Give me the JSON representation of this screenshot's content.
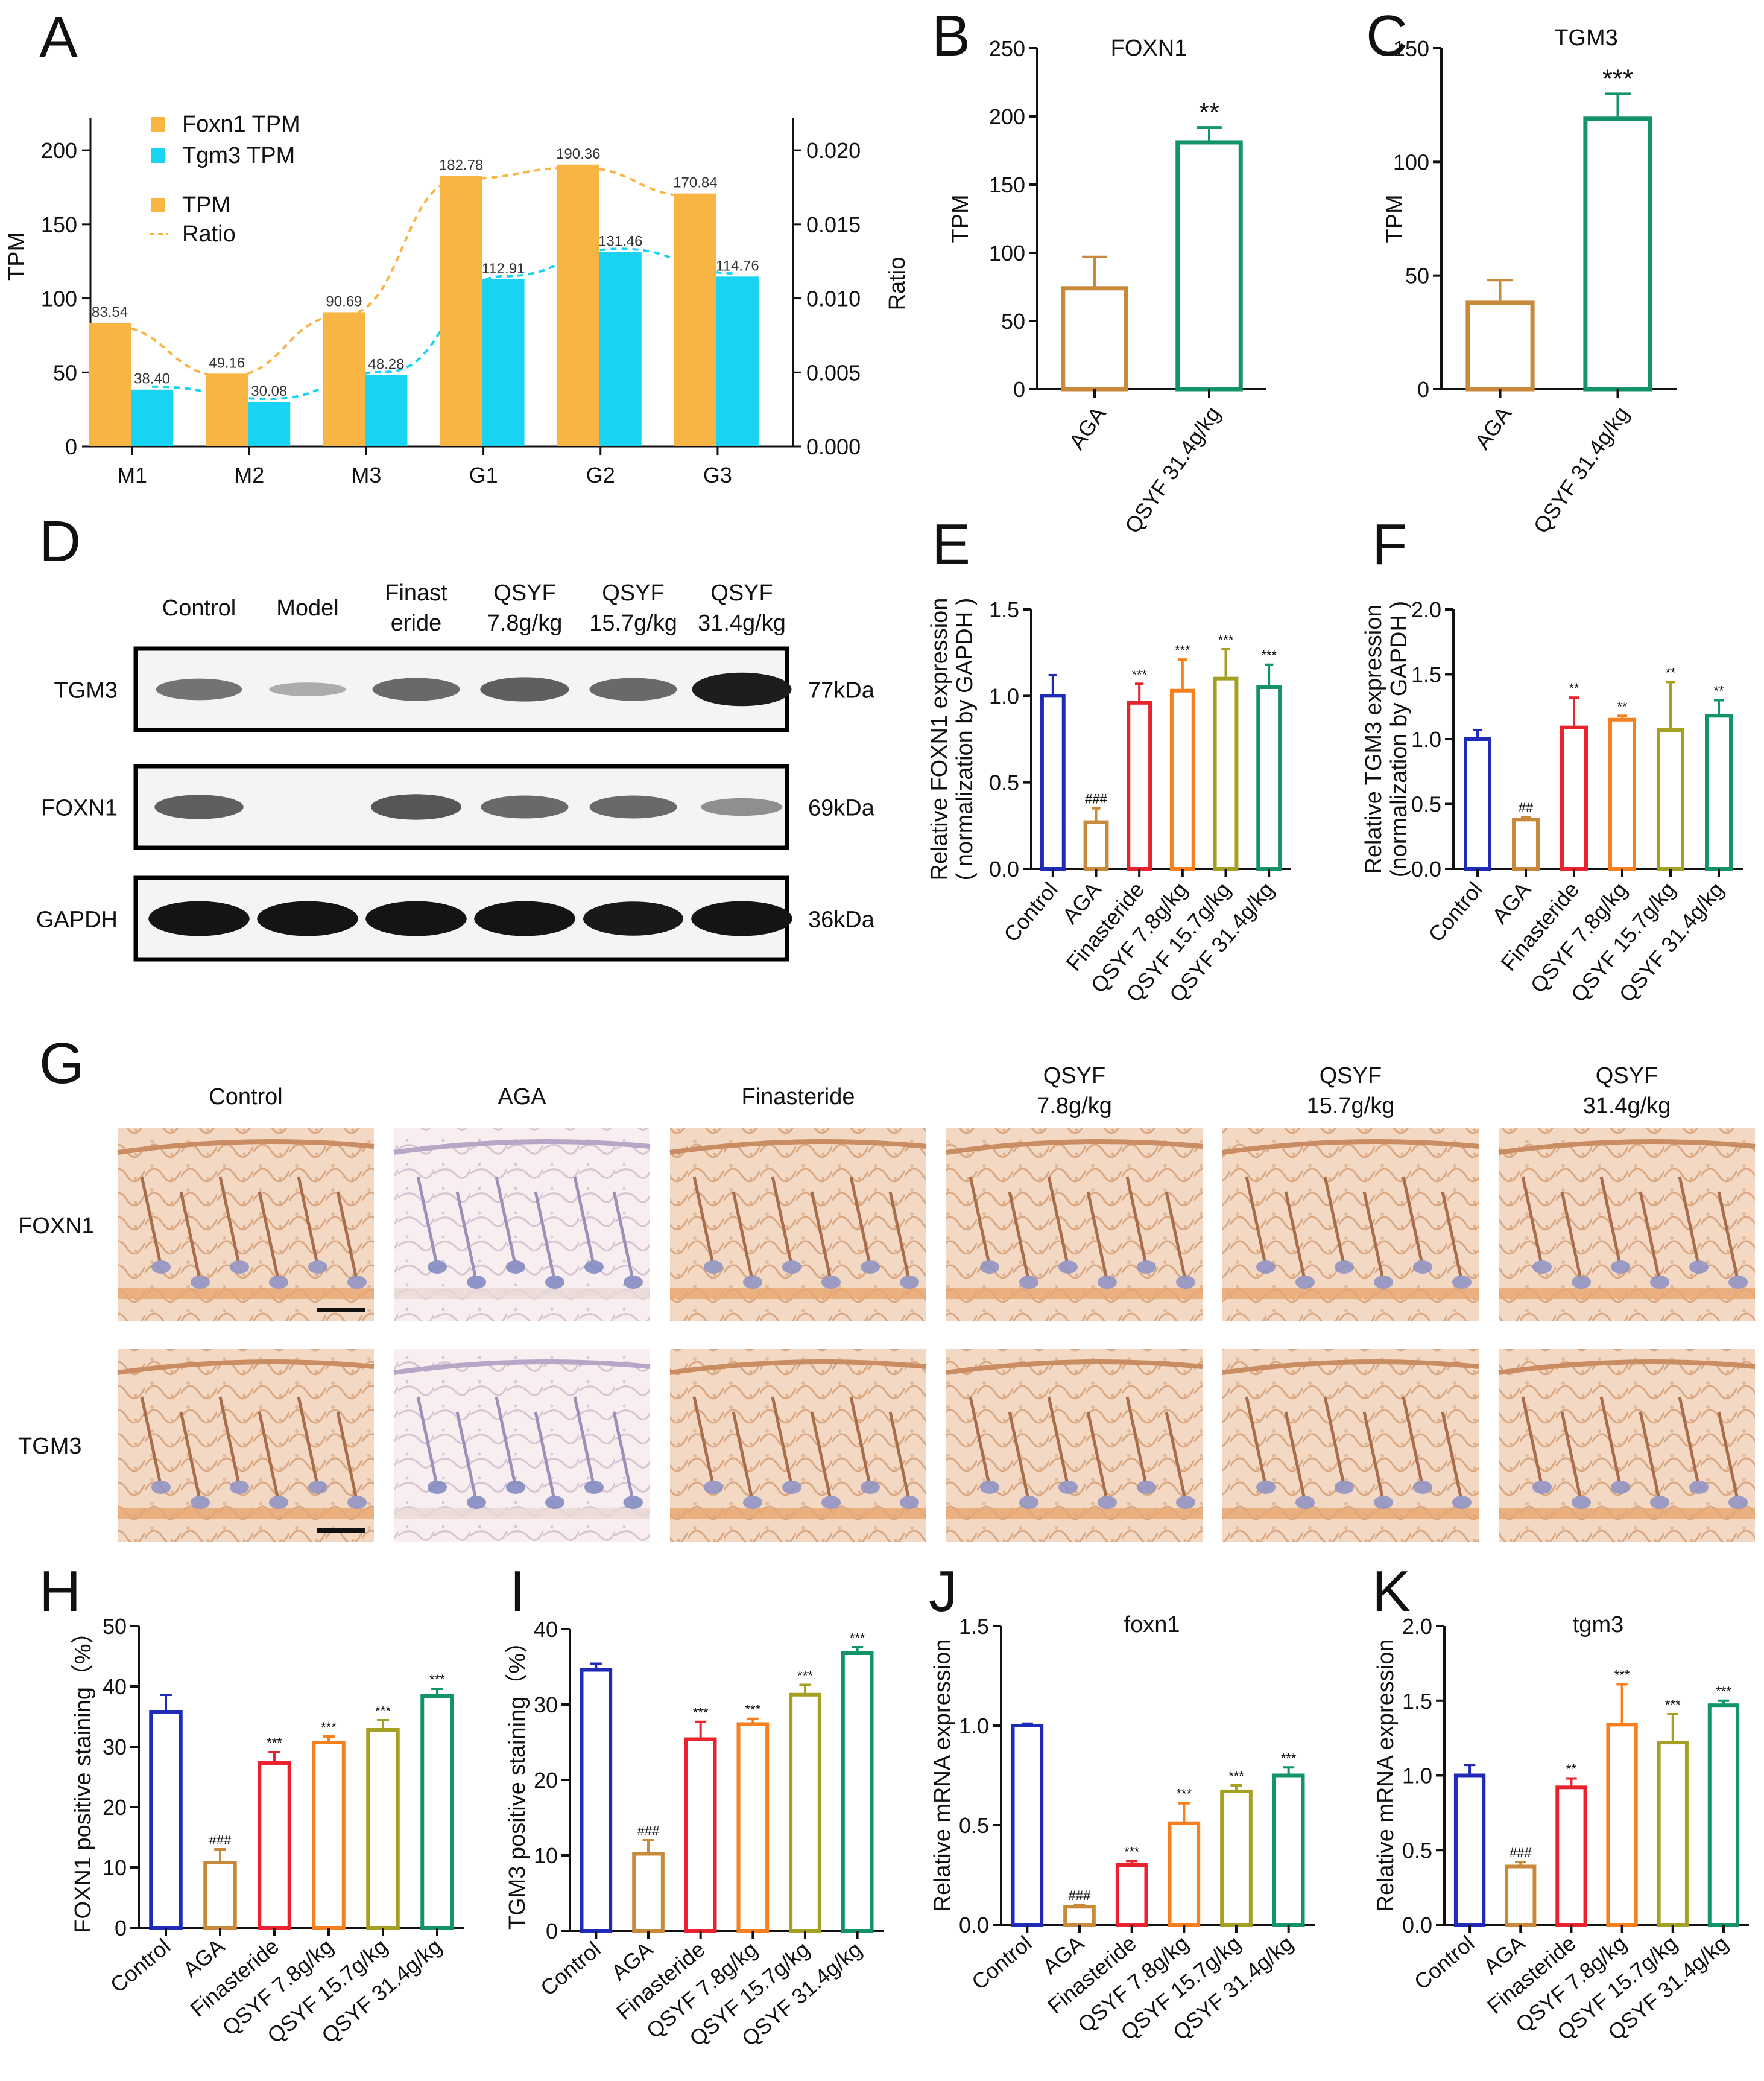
{
  "panels": {
    "A": "A",
    "B": "B",
    "C": "C",
    "D": "D",
    "E": "E",
    "F": "F",
    "G": "G",
    "H": "H",
    "I": "I",
    "J": "J",
    "K": "K"
  },
  "colors": {
    "orange": "#F9B544",
    "cyan": "#18D3F2",
    "Control": "#1F2AB8",
    "AGA": "#C88A3A",
    "Finasteride": "#E8232D",
    "QSYF 7.8g/kg": "#F77F1E",
    "QSYF 15.7g/kg": "#A6A022",
    "QSYF 31.4g/kg": "#12936A",
    "bar_fill": "#FFFFFF"
  },
  "chart_data": [
    {
      "panel": "A",
      "type": "bar",
      "categories": [
        "M1",
        "M2",
        "M3",
        "G1",
        "G2",
        "G3"
      ],
      "series": [
        {
          "name": "Foxn1 TPM",
          "values": [
            83.54,
            49.16,
            90.69,
            182.78,
            190.36,
            170.84
          ],
          "labels": [
            "83.54",
            "49.16",
            "90.69",
            "182.78",
            "190.36",
            "170.84"
          ]
        },
        {
          "name": "Tgm3 TPM",
          "values": [
            38.4,
            30.08,
            48.28,
            112.91,
            131.46,
            114.76
          ],
          "labels": [
            "38.40",
            "30.08",
            "48.28",
            "112.91",
            "131.46",
            "114.76"
          ]
        }
      ],
      "trend_lines": [
        {
          "name": "Foxn1",
          "values": [
            83.54,
            49.16,
            90.69,
            182.78,
            190.36,
            170.84
          ]
        },
        {
          "name": "Tgm3",
          "values": [
            38.4,
            30.08,
            48.28,
            112.91,
            131.46,
            114.76
          ]
        }
      ],
      "legend": [
        "Foxn1 TPM",
        "Tgm3 TPM",
        "TPM",
        "Ratio"
      ],
      "ylabel": "TPM",
      "y2label": "Ratio",
      "ylim": [
        0,
        220
      ],
      "yticks": [
        0,
        50,
        100,
        150,
        200
      ],
      "y2ticks": [
        "0.000",
        "0.005",
        "0.010",
        "0.015",
        "0.020"
      ]
    },
    {
      "panel": "B",
      "type": "bar",
      "title": "FOXN1",
      "categories": [
        "AGA",
        "QSYF 31.4g/kg"
      ],
      "values": [
        74,
        181
      ],
      "err": [
        23,
        11
      ],
      "ylabel": "TPM",
      "ylim": [
        0,
        250
      ],
      "yticks": [
        0,
        50,
        100,
        150,
        200,
        250
      ],
      "sig": [
        "",
        "**"
      ]
    },
    {
      "panel": "C",
      "type": "bar",
      "title": "TGM3",
      "categories": [
        "AGA",
        "QSYF 31.4g/kg"
      ],
      "values": [
        38,
        119
      ],
      "err": [
        10,
        11
      ],
      "ylabel": "TPM",
      "ylim": [
        0,
        150
      ],
      "yticks": [
        0,
        50,
        100,
        150
      ],
      "sig": [
        "",
        "***"
      ]
    },
    {
      "panel": "E",
      "type": "bar",
      "categories": [
        "Control",
        "AGA",
        "Finasteride",
        "QSYF 7.8g/kg",
        "QSYF 15.7g/kg",
        "QSYF 31.4g/kg"
      ],
      "values": [
        1.0,
        0.27,
        0.96,
        1.03,
        1.1,
        1.05
      ],
      "err": [
        0.12,
        0.08,
        0.11,
        0.18,
        0.17,
        0.13
      ],
      "ylabel": "Relative FOXN1 expression\n( normalization by GAPDH )",
      "ylim": [
        0,
        1.5
      ],
      "yticks": [
        "0.0",
        "0.5",
        "1.0",
        "1.5"
      ],
      "sig": [
        "",
        "###",
        "***",
        "***",
        "***",
        "***"
      ]
    },
    {
      "panel": "F",
      "type": "bar",
      "categories": [
        "Control",
        "AGA",
        "Finasteride",
        "QSYF 7.8g/kg",
        "QSYF 15.7g/kg",
        "QSYF 31.4g/kg"
      ],
      "values": [
        1.0,
        0.38,
        1.09,
        1.15,
        1.07,
        1.18
      ],
      "err": [
        0.07,
        0.02,
        0.23,
        0.03,
        0.37,
        0.12
      ],
      "ylabel": "Relative TGM3 expression\n(normalization by GAPDH )",
      "ylim": [
        0,
        2.0
      ],
      "yticks": [
        "0.0",
        "0.5",
        "1.0",
        "1.5",
        "2.0"
      ],
      "sig": [
        "",
        "##",
        "**",
        "**",
        "**",
        "**"
      ]
    },
    {
      "panel": "H",
      "type": "bar",
      "categories": [
        "Control",
        "AGA",
        "Finasteride",
        "QSYF 7.8g/kg",
        "QSYF 15.7g/kg",
        "QSYF 31.4g/kg"
      ],
      "values": [
        35.8,
        10.8,
        27.3,
        30.7,
        32.8,
        38.4
      ],
      "err": [
        2.8,
        2.2,
        1.8,
        1.0,
        1.6,
        1.2
      ],
      "ylabel": "FOXN1 positive staining（%）",
      "ylim": [
        0,
        50
      ],
      "yticks": [
        0,
        10,
        20,
        30,
        40,
        50
      ],
      "sig": [
        "",
        "###",
        "***",
        "***",
        "***",
        "***"
      ]
    },
    {
      "panel": "I",
      "type": "bar",
      "categories": [
        "Control",
        "AGA",
        "Finasteride",
        "QSYF 7.8g/kg",
        "QSYF 15.7g/kg",
        "QSYF 31.4g/kg"
      ],
      "values": [
        34.6,
        10.2,
        25.4,
        27.4,
        31.3,
        36.8
      ],
      "err": [
        0.8,
        1.8,
        2.3,
        0.7,
        1.3,
        0.8
      ],
      "ylabel": "TGM3 positive staining（%）",
      "ylim": [
        0,
        40
      ],
      "yticks": [
        0,
        10,
        20,
        30,
        40
      ],
      "sig": [
        "",
        "###",
        "***",
        "***",
        "***",
        "***"
      ]
    },
    {
      "panel": "J",
      "type": "bar",
      "title": "foxn1",
      "categories": [
        "Control",
        "AGA",
        "Finasteride",
        "QSYF 7.8g/kg",
        "QSYF 15.7g/kg",
        "QSYF 31.4g/kg"
      ],
      "values": [
        1.0,
        0.09,
        0.3,
        0.51,
        0.67,
        0.75
      ],
      "err": [
        0.01,
        0.01,
        0.02,
        0.1,
        0.03,
        0.04
      ],
      "ylabel": "Relative mRNA expression",
      "ylim": [
        0,
        1.5
      ],
      "yticks": [
        "0.0",
        "0.5",
        "1.0",
        "1.5"
      ],
      "sig": [
        "",
        "###",
        "***",
        "***",
        "***",
        "***"
      ]
    },
    {
      "panel": "K",
      "type": "bar",
      "title": "tgm3",
      "categories": [
        "Control",
        "AGA",
        "Finasteride",
        "QSYF 7.8g/kg",
        "QSYF 15.7g/kg",
        "QSYF 31.4g/kg"
      ],
      "values": [
        1.0,
        0.39,
        0.92,
        1.34,
        1.22,
        1.47
      ],
      "err": [
        0.07,
        0.03,
        0.06,
        0.27,
        0.19,
        0.03
      ],
      "ylabel": "Relative mRNA expression",
      "ylim": [
        0,
        2.0
      ],
      "yticks": [
        "0.0",
        "0.5",
        "1.0",
        "1.5",
        "2.0"
      ],
      "sig": [
        "",
        "###",
        "**",
        "***",
        "***",
        "***"
      ]
    }
  ],
  "western_blot": {
    "lanes": [
      "Control",
      "Model",
      "Finast\neride",
      "QSYF\n7.8g/kg",
      "QSYF\n15.7g/kg",
      "QSYF\n31.4g/kg"
    ],
    "rows": [
      {
        "name": "TGM3",
        "kda": "77kDa",
        "intensity": [
          0.45,
          0.15,
          0.5,
          0.55,
          0.5,
          0.9
        ]
      },
      {
        "name": "FOXN1",
        "kda": "69kDa",
        "intensity": [
          0.55,
          0.0,
          0.6,
          0.5,
          0.5,
          0.3
        ]
      },
      {
        "name": "GAPDH",
        "kda": "36kDa",
        "intensity": [
          0.95,
          0.95,
          0.95,
          0.95,
          0.92,
          0.95
        ]
      }
    ]
  },
  "histology": {
    "columns": [
      "Control",
      "AGA",
      "Finasteride",
      "QSYF\n7.8g/kg",
      "QSYF\n15.7g/kg",
      "QSYF\n31.4g/kg"
    ],
    "rows": [
      "FOXN1",
      "TGM3"
    ]
  }
}
